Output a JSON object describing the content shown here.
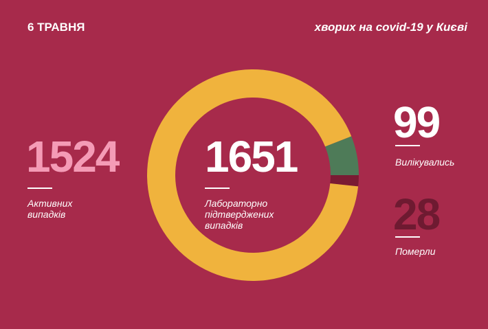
{
  "date": "6 ТРАВНЯ",
  "headline": "хворих на covid-19 у Києві",
  "chart_data": {
    "type": "donut",
    "total": 1651,
    "total_label": "Лабораторно підтверджених випадків",
    "categories": [
      "Активних випадків",
      "Вилікувались",
      "Померли"
    ],
    "values": [
      1524,
      99,
      28
    ],
    "colors": [
      "#f0b33d",
      "#4e7b58",
      "#7a1b33"
    ],
    "number_colors": [
      "#f49bb6",
      "#ffffff",
      "#6e1a31"
    ]
  }
}
